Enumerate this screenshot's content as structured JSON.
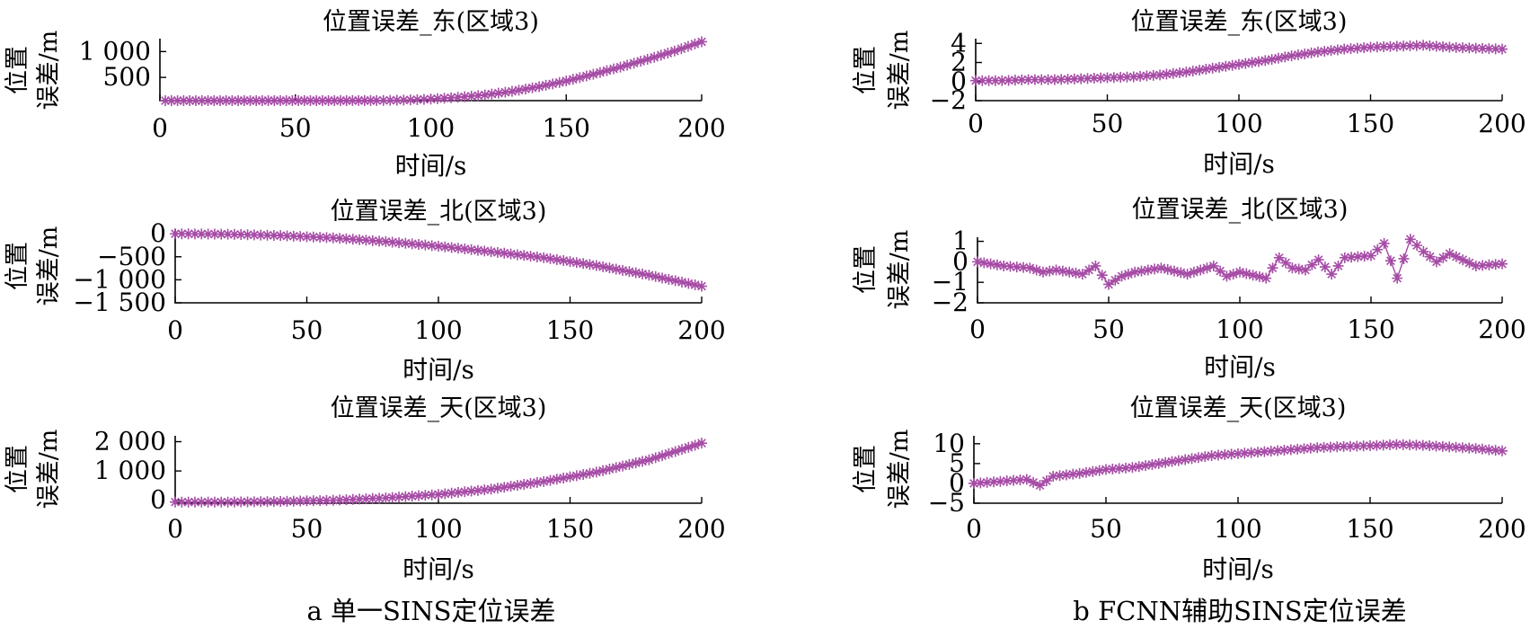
{
  "captions": {
    "left": "a 单一SINS定位误差",
    "right": "b FCNN辅助SINS定位误差"
  },
  "colors": {
    "series": "#a64ca6",
    "axis": "#000000"
  },
  "chart_data": [
    {
      "id": "a-east",
      "type": "line",
      "marker": "asterisk",
      "title": "位置误差_东(区域3)",
      "xlabel": "时间/s",
      "ylabel": [
        "位置",
        "误差/m"
      ],
      "xlim": [
        0,
        200
      ],
      "ylim": [
        50,
        1250
      ],
      "xticks": [
        0,
        50,
        100,
        150,
        200
      ],
      "xtick_labels": [
        "0",
        "50",
        "100",
        "150",
        "200"
      ],
      "yticks": [
        500,
        1000
      ],
      "ytick_labels": [
        "500",
        "1 000"
      ],
      "x": [
        2,
        20,
        40,
        60,
        80,
        90,
        100,
        110,
        120,
        130,
        140,
        150,
        160,
        170,
        180,
        190,
        200
      ],
      "y": [
        50,
        50,
        50,
        50,
        52,
        60,
        80,
        115,
        160,
        230,
        320,
        430,
        560,
        700,
        850,
        1010,
        1190
      ]
    },
    {
      "id": "a-north",
      "type": "line",
      "marker": "asterisk",
      "title": "位置误差_北(区域3)",
      "xlabel": "时间/s",
      "ylabel": [
        "位置",
        "误差/m"
      ],
      "xlim": [
        0,
        200
      ],
      "ylim": [
        -1500,
        100
      ],
      "xticks": [
        0,
        50,
        100,
        150,
        200
      ],
      "xtick_labels": [
        "0",
        "50",
        "100",
        "150",
        "200"
      ],
      "yticks": [
        0,
        -500,
        -1000,
        -1500
      ],
      "ytick_labels": [
        "0",
        "−500",
        "−1 000",
        "−1 500"
      ],
      "x": [
        0,
        20,
        40,
        60,
        80,
        100,
        120,
        140,
        160,
        180,
        200
      ],
      "y": [
        0,
        -10,
        -40,
        -90,
        -170,
        -270,
        -390,
        -520,
        -690,
        -900,
        -1140
      ]
    },
    {
      "id": "a-up",
      "type": "line",
      "marker": "asterisk",
      "title": "位置误差_天(区域3)",
      "xlabel": "时间/s",
      "ylabel": [
        "位置",
        "误差/m"
      ],
      "xlim": [
        0,
        200
      ],
      "ylim": [
        -100,
        2200
      ],
      "xticks": [
        0,
        50,
        100,
        150,
        200
      ],
      "xtick_labels": [
        "0",
        "50",
        "100",
        "150",
        "200"
      ],
      "yticks": [
        0,
        1000,
        2000
      ],
      "ytick_labels": [
        "0",
        "1 000",
        "2 000"
      ],
      "x": [
        0,
        20,
        40,
        60,
        80,
        100,
        120,
        140,
        160,
        180,
        200
      ],
      "y": [
        -60,
        -60,
        -40,
        0,
        80,
        200,
        380,
        640,
        960,
        1380,
        1950
      ]
    },
    {
      "id": "b-east",
      "type": "line",
      "marker": "asterisk",
      "title": "位置误差_东(区域3)",
      "xlabel": "时间/s",
      "ylabel": [
        "位置",
        "误差/m"
      ],
      "xlim": [
        0,
        200
      ],
      "ylim": [
        -2,
        4.5
      ],
      "xticks": [
        0,
        50,
        100,
        150,
        200
      ],
      "xtick_labels": [
        "0",
        "50",
        "100",
        "150",
        "200"
      ],
      "yticks": [
        -2,
        0,
        2,
        4
      ],
      "ytick_labels": [
        "−2",
        "0",
        "2",
        "4"
      ],
      "x": [
        0,
        10,
        20,
        30,
        40,
        50,
        60,
        70,
        80,
        90,
        100,
        110,
        120,
        130,
        140,
        150,
        160,
        170,
        180,
        190,
        200
      ],
      "y": [
        0.1,
        0.1,
        0.2,
        0.2,
        0.3,
        0.4,
        0.5,
        0.7,
        1.0,
        1.4,
        1.8,
        2.2,
        2.7,
        3.1,
        3.4,
        3.6,
        3.7,
        3.8,
        3.6,
        3.5,
        3.4
      ]
    },
    {
      "id": "b-north",
      "type": "line",
      "marker": "asterisk",
      "title": "位置误差_北(区域3)",
      "xlabel": "时间/s",
      "ylabel": [
        "位置",
        "误差/m"
      ],
      "xlim": [
        0,
        200
      ],
      "ylim": [
        -2,
        1.2
      ],
      "xticks": [
        0,
        50,
        100,
        150,
        200
      ],
      "xtick_labels": [
        "0",
        "50",
        "100",
        "150",
        "200"
      ],
      "yticks": [
        -2,
        -1,
        0,
        1
      ],
      "ytick_labels": [
        "−2",
        "−1",
        "0",
        "1"
      ],
      "x": [
        0,
        10,
        20,
        25,
        30,
        40,
        45,
        50,
        55,
        60,
        70,
        80,
        90,
        95,
        100,
        110,
        115,
        120,
        125,
        130,
        135,
        140,
        150,
        155,
        160,
        165,
        170,
        175,
        180,
        190,
        200
      ],
      "y": [
        0,
        -0.2,
        -0.3,
        -0.5,
        -0.4,
        -0.6,
        -0.2,
        -1.1,
        -0.7,
        -0.5,
        -0.3,
        -0.6,
        -0.2,
        -0.7,
        -0.5,
        -0.8,
        0.2,
        -0.3,
        -0.4,
        0.1,
        -0.6,
        0.2,
        0.3,
        0.9,
        -0.8,
        1.1,
        0.5,
        0.0,
        0.4,
        -0.2,
        -0.1
      ]
    },
    {
      "id": "b-up",
      "type": "line",
      "marker": "asterisk",
      "title": "位置误差_天(区域3)",
      "xlabel": "时间/s",
      "ylabel": [
        "位置",
        "误差/m"
      ],
      "xlim": [
        0,
        200
      ],
      "ylim": [
        -5,
        12
      ],
      "xticks": [
        0,
        50,
        100,
        150,
        200
      ],
      "xtick_labels": [
        "0",
        "50",
        "100",
        "150",
        "200"
      ],
      "yticks": [
        -5,
        0,
        5,
        10
      ],
      "ytick_labels": [
        "−5",
        "0",
        "5",
        "10"
      ],
      "x": [
        0,
        10,
        20,
        25,
        30,
        40,
        50,
        60,
        70,
        80,
        90,
        100,
        110,
        120,
        130,
        140,
        150,
        160,
        170,
        180,
        190,
        200
      ],
      "y": [
        0,
        0.5,
        1.0,
        -0.5,
        1.8,
        2.5,
        3.5,
        4.0,
        5.0,
        6.0,
        7.0,
        7.5,
        8.0,
        8.5,
        9.0,
        9.3,
        9.5,
        9.8,
        9.6,
        9.2,
        8.8,
        8.2
      ]
    }
  ]
}
